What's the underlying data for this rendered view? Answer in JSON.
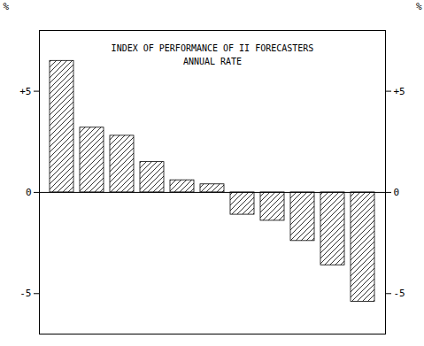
{
  "chart_data": {
    "type": "bar",
    "title": "INDEX OF PERFORMANCE OF II FORECASTERS",
    "subtitle": "ANNUAL RATE",
    "categories": [
      null,
      null,
      null,
      null,
      null,
      null,
      null,
      null,
      null,
      null,
      null
    ],
    "values": [
      6.5,
      3.2,
      2.8,
      1.5,
      0.6,
      0.4,
      -1.1,
      -1.4,
      -2.4,
      -3.6,
      -5.4
    ],
    "color": "#000000",
    "ylim": [
      -7.0,
      8.0
    ],
    "yticks": [
      -5,
      0,
      {
        "value": 5,
        "label": "+5"
      }
    ],
    "ylabel": "%",
    "y2lim": [
      -7.0,
      8.0
    ],
    "y2ticks": [
      -5,
      0,
      {
        "value": 5,
        "label": "+5"
      }
    ],
    "y2label": "%",
    "tick_labels": "y",
    "grid": false
  }
}
